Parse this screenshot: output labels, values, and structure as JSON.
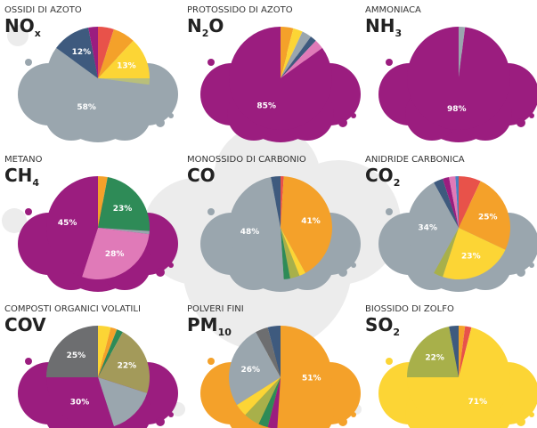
{
  "chart_data": [
    {
      "type": "pie",
      "title": "OSSIDI DI AZOTO",
      "formula": [
        {
          "text": "NO"
        },
        {
          "text": "x",
          "sub": true
        }
      ],
      "values": [
        5,
        7,
        13,
        2,
        58,
        12,
        3
      ],
      "value_labels": [
        null,
        null,
        "13%",
        null,
        "58%",
        "12%",
        null
      ],
      "colors": [
        "#e8524a",
        "#f4a12a",
        "#fcd535",
        "#b9bf7a",
        "#9aa6ae",
        "#3e5a7e",
        "#9b1d7f"
      ]
    },
    {
      "type": "pie",
      "title": "PROTOSSIDO DI AZOTO",
      "formula": [
        {
          "text": "N"
        },
        {
          "text": "2",
          "sub": true
        },
        {
          "text": "O"
        }
      ],
      "values": [
        4,
        3,
        3,
        2,
        3,
        85
      ],
      "value_labels": [
        null,
        null,
        null,
        null,
        null,
        "85%"
      ],
      "colors": [
        "#f4a12a",
        "#fcd535",
        "#9aa6ae",
        "#3e5a7e",
        "#e07ab8",
        "#9b1d7f"
      ]
    },
    {
      "type": "pie",
      "title": "AMMONIACA",
      "formula": [
        {
          "text": "NH"
        },
        {
          "text": "3",
          "sub": true
        }
      ],
      "values": [
        2,
        98
      ],
      "value_labels": [
        null,
        "98%"
      ],
      "colors": [
        "#9aa6ae",
        "#9b1d7f"
      ]
    },
    {
      "type": "pie",
      "title": "METANO",
      "formula": [
        {
          "text": "CH"
        },
        {
          "text": "4",
          "sub": true
        }
      ],
      "values": [
        3,
        23,
        1,
        28,
        45
      ],
      "value_labels": [
        null,
        "23%",
        null,
        "28%",
        "45%"
      ],
      "colors": [
        "#f4a12a",
        "#2e8b57",
        "#9aa6ae",
        "#e07ab8",
        "#9b1d7f"
      ]
    },
    {
      "type": "pie",
      "title": "MONOSSIDO DI CARBONIO",
      "formula": [
        {
          "text": "CO"
        }
      ],
      "values": [
        1,
        41,
        2,
        3,
        2,
        48,
        3
      ],
      "value_labels": [
        null,
        "41%",
        null,
        null,
        null,
        "48%",
        null
      ],
      "colors": [
        "#e8524a",
        "#f4a12a",
        "#fcd535",
        "#a8b04a",
        "#2e8b57",
        "#9aa6ae",
        "#3e5a7e"
      ]
    },
    {
      "type": "pie",
      "title": "ANIDRIDE CARBONICA",
      "formula": [
        {
          "text": "CO"
        },
        {
          "text": "2",
          "sub": true
        }
      ],
      "values": [
        7,
        25,
        23,
        3,
        34,
        3,
        2,
        2,
        1
      ],
      "value_labels": [
        null,
        "25%",
        "23%",
        null,
        "34%",
        null,
        null,
        null,
        null
      ],
      "colors": [
        "#e8524a",
        "#f4a12a",
        "#fcd535",
        "#a8b04a",
        "#9aa6ae",
        "#3e5a7e",
        "#9b1d7f",
        "#e07ab8",
        "#4a7fc0"
      ]
    },
    {
      "type": "pie",
      "title": "COMPOSTI ORGANICI VOLATILI",
      "formula": [
        {
          "text": "COV"
        }
      ],
      "values": [
        4,
        2,
        2,
        22,
        15,
        30,
        25
      ],
      "value_labels": [
        null,
        null,
        null,
        "22%",
        null,
        "30%",
        "25%"
      ],
      "colors": [
        "#fcd535",
        "#f4a12a",
        "#2e8b57",
        "#a39a5a",
        "#9aa6ae",
        "#9b1d7f",
        "#6d6e70"
      ]
    },
    {
      "type": "pie",
      "title": "POLVERI FINI",
      "formula": [
        {
          "text": "PM"
        },
        {
          "text": "10",
          "sub": true
        }
      ],
      "values": [
        51,
        3,
        3,
        5,
        4,
        26,
        4,
        4
      ],
      "value_labels": [
        "51%",
        null,
        null,
        null,
        null,
        "26%",
        null,
        null
      ],
      "colors": [
        "#f4a12a",
        "#9b1d7f",
        "#2e8b57",
        "#a8b04a",
        "#fcd535",
        "#9aa6ae",
        "#6d6e70",
        "#3e5a7e"
      ]
    },
    {
      "type": "pie",
      "title": "BIOSSIDO DI ZOLFO",
      "formula": [
        {
          "text": "SO"
        },
        {
          "text": "2",
          "sub": true
        }
      ],
      "values": [
        2,
        2,
        71,
        22,
        3
      ],
      "value_labels": [
        null,
        null,
        "71%",
        "22%",
        null
      ],
      "colors": [
        "#f4a12a",
        "#e8524a",
        "#fcd535",
        "#a8b04a",
        "#3e5a7e"
      ]
    }
  ]
}
